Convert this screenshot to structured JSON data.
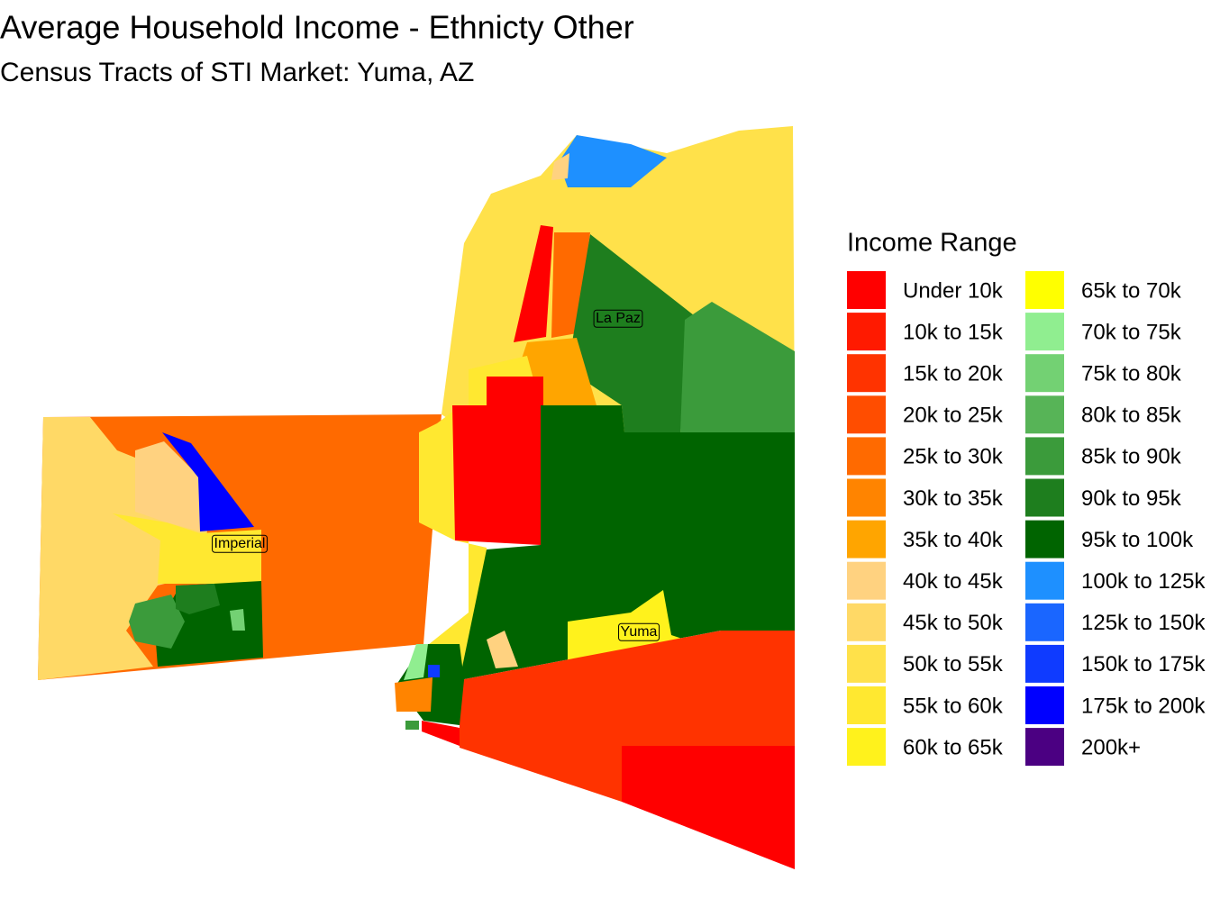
{
  "title": "Average Household Income - Ethnicty Other",
  "subtitle": "Census Tracts of STI Market: Yuma, AZ",
  "legend": {
    "title": "Income Range",
    "items": [
      {
        "label": "Under 10k",
        "color": "#ff0000"
      },
      {
        "label": "10k to 15k",
        "color": "#ff1a00"
      },
      {
        "label": "15k to 20k",
        "color": "#ff3300"
      },
      {
        "label": "20k to 25k",
        "color": "#ff4d00"
      },
      {
        "label": "25k to 30k",
        "color": "#ff6a00"
      },
      {
        "label": "30k to 35k",
        "color": "#ff8400"
      },
      {
        "label": "35k to 40k",
        "color": "#ffa500"
      },
      {
        "label": "40k to 45k",
        "color": "#ffd280"
      },
      {
        "label": "45k to 50k",
        "color": "#ffd966"
      },
      {
        "label": "50k to 55k",
        "color": "#ffe14a"
      },
      {
        "label": "55k to 60k",
        "color": "#ffe830"
      },
      {
        "label": "60k to 65k",
        "color": "#fff21c"
      },
      {
        "label": "65k to 70k",
        "color": "#ffff00"
      },
      {
        "label": "70k to 75k",
        "color": "#90ee90"
      },
      {
        "label": "75k to 80k",
        "color": "#73d173"
      },
      {
        "label": "80k to 85k",
        "color": "#57b457"
      },
      {
        "label": "85k to 90k",
        "color": "#3b9b3b"
      },
      {
        "label": "90k to 95k",
        "color": "#1e7e1e"
      },
      {
        "label": "95k to 100k",
        "color": "#006400"
      },
      {
        "label": "100k to 125k",
        "color": "#1e90ff"
      },
      {
        "label": "125k to 150k",
        "color": "#1a66ff"
      },
      {
        "label": "150k to 175k",
        "color": "#0f3bff"
      },
      {
        "label": "175k to 200k",
        "color": "#0000ff"
      },
      {
        "label": "200k+",
        "color": "#4b0082"
      }
    ]
  },
  "county_labels": [
    "La Paz",
    "Imperial",
    "Yuma"
  ]
}
